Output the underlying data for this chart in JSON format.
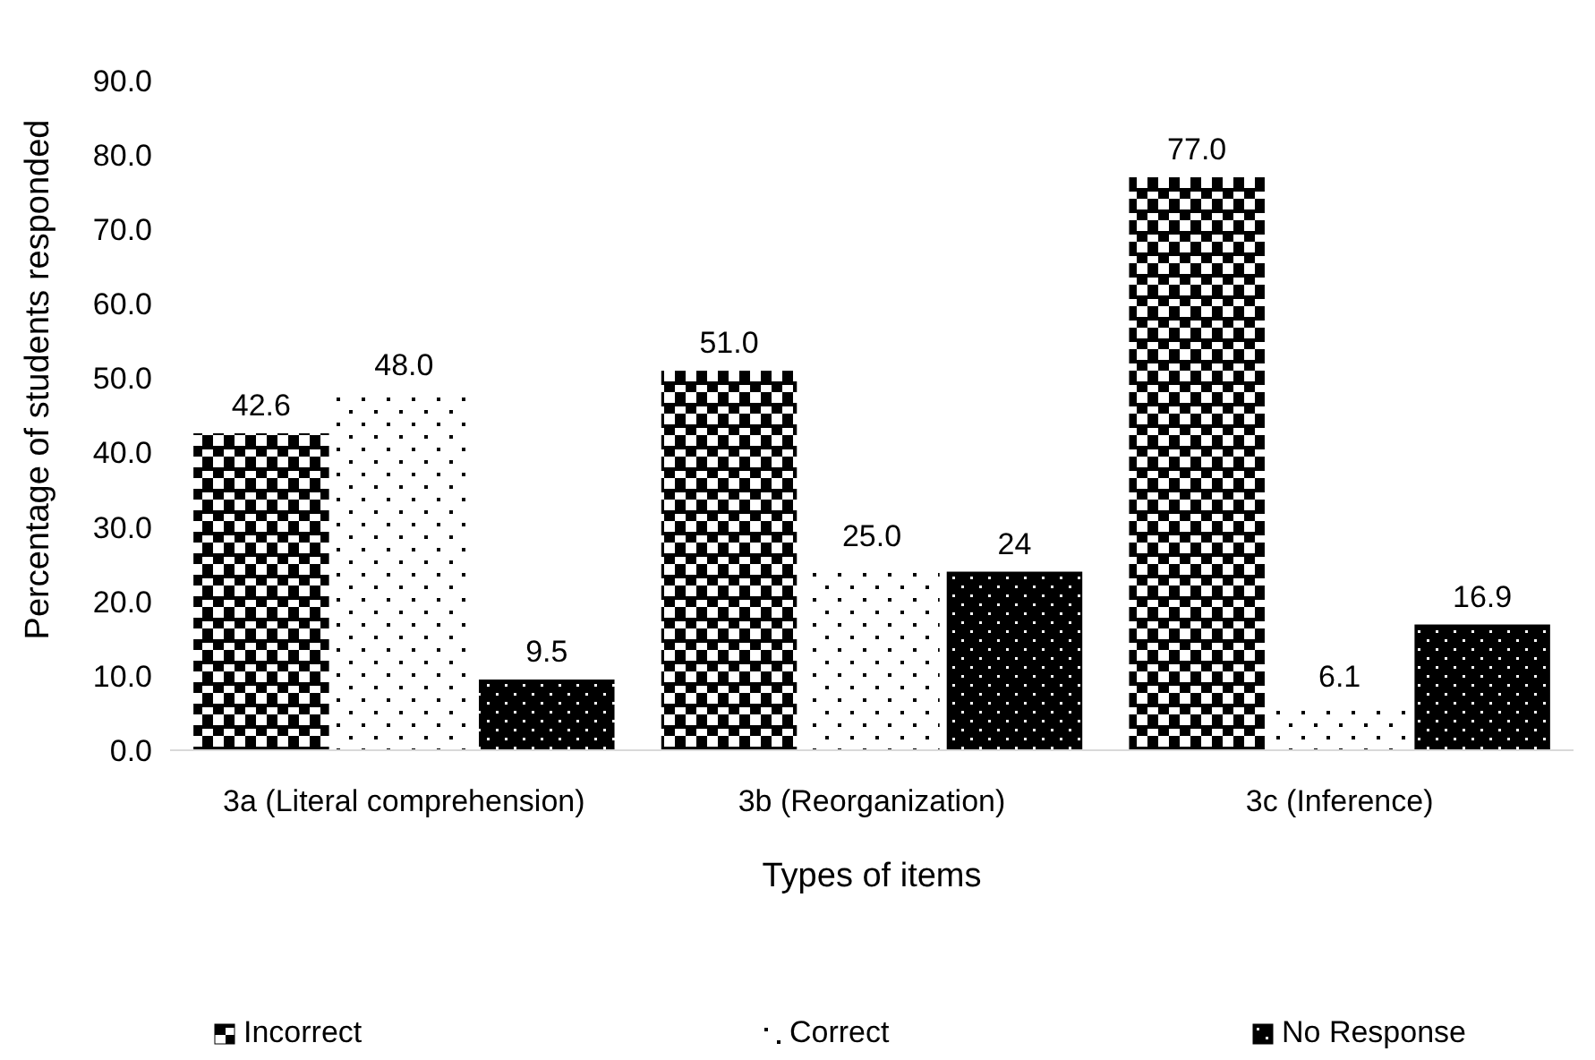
{
  "chart_data": {
    "type": "bar",
    "xlabel": "Types of items",
    "ylabel": "Percentage of students responded",
    "categories": [
      "3a (Literal comprehension)",
      "3b (Reorganization)",
      "3c (Inference)"
    ],
    "series": [
      {
        "name": "Incorrect",
        "color": "#000000",
        "values": [
          42.6,
          51.0,
          77.0
        ],
        "value_labels": [
          "42.6",
          "51.0",
          "77.0"
        ]
      },
      {
        "name": "Correct",
        "color": "#ffffff",
        "values": [
          48.0,
          25.0,
          6.1
        ],
        "value_labels": [
          "48.0",
          "25.0",
          "6.1"
        ]
      },
      {
        "name": "No Response",
        "color": "#000000",
        "values": [
          9.5,
          24,
          16.9
        ],
        "value_labels": [
          "9.5",
          "24",
          "16.9"
        ]
      }
    ],
    "ylim": [
      0,
      90
    ],
    "yticks": [
      {
        "value": 0,
        "label": "0.0"
      },
      {
        "value": 10,
        "label": "10.0"
      },
      {
        "value": 20,
        "label": "20.0"
      },
      {
        "value": 30,
        "label": "30.0"
      },
      {
        "value": 40,
        "label": "40.0"
      },
      {
        "value": 50,
        "label": "50.0"
      },
      {
        "value": 60,
        "label": "60.0"
      },
      {
        "value": 70,
        "label": "70.0"
      },
      {
        "value": 80,
        "label": "80.0"
      },
      {
        "value": 90,
        "label": "90.0"
      }
    ],
    "grid": false,
    "legend": "bottom"
  }
}
